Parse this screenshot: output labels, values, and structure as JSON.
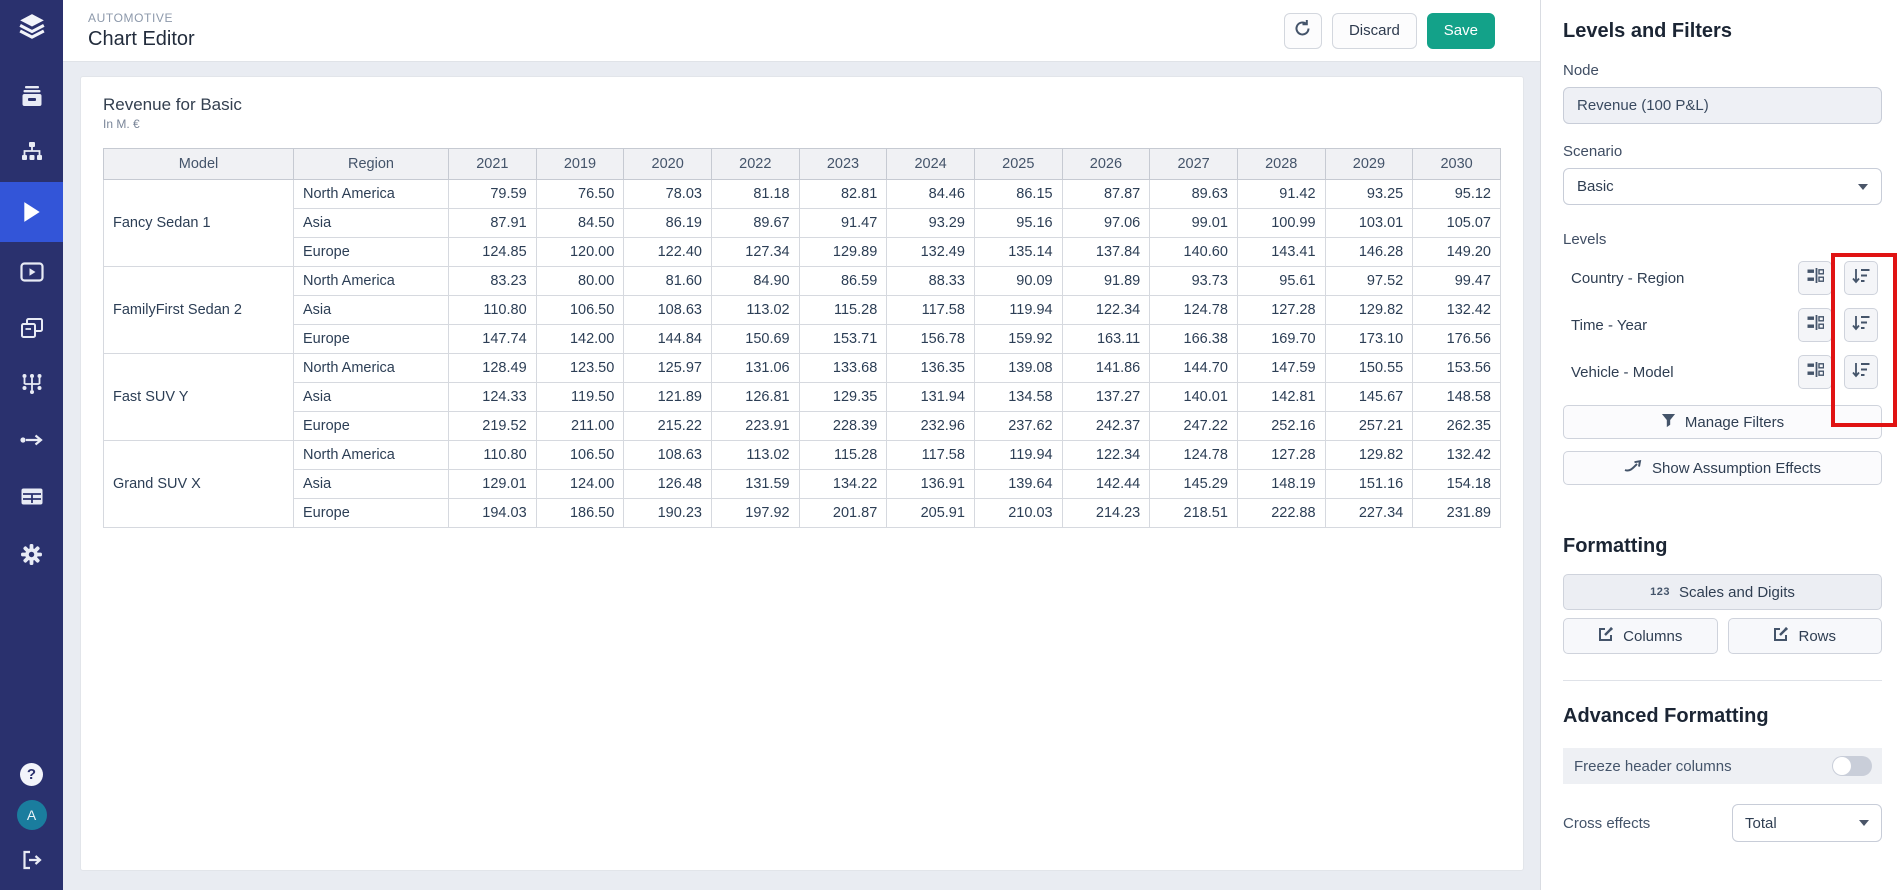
{
  "sidebar": {
    "icons": [
      "layers-logo",
      "archive",
      "sitemap",
      "play",
      "video-player",
      "slides",
      "workflow",
      "flow-arrow",
      "data-table",
      "settings-gear"
    ],
    "active_icon": "play",
    "help_glyph": "?",
    "avatar_initial": "A"
  },
  "header": {
    "breadcrumb": "AUTOMOTIVE",
    "title": "Chart Editor",
    "discard_label": "Discard",
    "save_label": "Save"
  },
  "chart": {
    "title": "Revenue for Basic",
    "subtitle": "In M. €",
    "table": {
      "columns": [
        "Model",
        "Region",
        "2021",
        "2019",
        "2020",
        "2022",
        "2023",
        "2024",
        "2025",
        "2026",
        "2027",
        "2028",
        "2029",
        "2030"
      ],
      "groups": [
        {
          "model": "Fancy Sedan 1",
          "rows": [
            {
              "region": "North America",
              "values": [
                "79.59",
                "76.50",
                "78.03",
                "81.18",
                "82.81",
                "84.46",
                "86.15",
                "87.87",
                "89.63",
                "91.42",
                "93.25",
                "95.12"
              ]
            },
            {
              "region": "Asia",
              "values": [
                "87.91",
                "84.50",
                "86.19",
                "89.67",
                "91.47",
                "93.29",
                "95.16",
                "97.06",
                "99.01",
                "100.99",
                "103.01",
                "105.07"
              ]
            },
            {
              "region": "Europe",
              "values": [
                "124.85",
                "120.00",
                "122.40",
                "127.34",
                "129.89",
                "132.49",
                "135.14",
                "137.84",
                "140.60",
                "143.41",
                "146.28",
                "149.20"
              ]
            }
          ]
        },
        {
          "model": "FamilyFirst Sedan 2",
          "rows": [
            {
              "region": "North America",
              "values": [
                "83.23",
                "80.00",
                "81.60",
                "84.90",
                "86.59",
                "88.33",
                "90.09",
                "91.89",
                "93.73",
                "95.61",
                "97.52",
                "99.47"
              ]
            },
            {
              "region": "Asia",
              "values": [
                "110.80",
                "106.50",
                "108.63",
                "113.02",
                "115.28",
                "117.58",
                "119.94",
                "122.34",
                "124.78",
                "127.28",
                "129.82",
                "132.42"
              ]
            },
            {
              "region": "Europe",
              "values": [
                "147.74",
                "142.00",
                "144.84",
                "150.69",
                "153.71",
                "156.78",
                "159.92",
                "163.11",
                "166.38",
                "169.70",
                "173.10",
                "176.56"
              ]
            }
          ]
        },
        {
          "model": "Fast SUV Y",
          "rows": [
            {
              "region": "North America",
              "values": [
                "128.49",
                "123.50",
                "125.97",
                "131.06",
                "133.68",
                "136.35",
                "139.08",
                "141.86",
                "144.70",
                "147.59",
                "150.55",
                "153.56"
              ]
            },
            {
              "region": "Asia",
              "values": [
                "124.33",
                "119.50",
                "121.89",
                "126.81",
                "129.35",
                "131.94",
                "134.58",
                "137.27",
                "140.01",
                "142.81",
                "145.67",
                "148.58"
              ]
            },
            {
              "region": "Europe",
              "values": [
                "219.52",
                "211.00",
                "215.22",
                "223.91",
                "228.39",
                "232.96",
                "237.62",
                "242.37",
                "247.22",
                "252.16",
                "257.21",
                "262.35"
              ]
            }
          ]
        },
        {
          "model": "Grand SUV X",
          "rows": [
            {
              "region": "North America",
              "values": [
                "110.80",
                "106.50",
                "108.63",
                "113.02",
                "115.28",
                "117.58",
                "119.94",
                "122.34",
                "124.78",
                "127.28",
                "129.82",
                "132.42"
              ]
            },
            {
              "region": "Asia",
              "values": [
                "129.01",
                "124.00",
                "126.48",
                "131.59",
                "134.22",
                "136.91",
                "139.64",
                "142.44",
                "145.29",
                "148.19",
                "151.16",
                "154.18"
              ]
            },
            {
              "region": "Europe",
              "values": [
                "194.03",
                "186.50",
                "190.23",
                "197.92",
                "201.87",
                "205.91",
                "210.03",
                "214.23",
                "218.51",
                "222.88",
                "227.34",
                "231.89"
              ]
            }
          ]
        }
      ]
    }
  },
  "panel": {
    "title": "Levels and Filters",
    "node": {
      "label": "Node",
      "value": "Revenue (100 P&L)"
    },
    "scenario": {
      "label": "Scenario",
      "value": "Basic"
    },
    "levels": {
      "label": "Levels",
      "items": [
        "Country - Region",
        "Time - Year",
        "Vehicle - Model"
      ]
    },
    "manage_filters_label": "Manage Filters",
    "show_assumption_label": "Show Assumption Effects",
    "formatting": {
      "title": "Formatting",
      "scales_icon": "123",
      "scales_label": "Scales and Digits",
      "columns_label": "Columns",
      "rows_label": "Rows"
    },
    "advanced": {
      "title": "Advanced Formatting",
      "freeze_label": "Freeze header columns",
      "freeze_on": false,
      "cross_label": "Cross effects",
      "cross_value": "Total"
    }
  },
  "colors": {
    "sidebar_bg": "#2a316e",
    "sidebar_active": "#3355d8",
    "save_button": "#13a289",
    "avatar": "#1a7d9e",
    "highlight": "#e01313",
    "main_bg": "#e9ecf2",
    "table_header_bg": "#f0f1f4"
  }
}
